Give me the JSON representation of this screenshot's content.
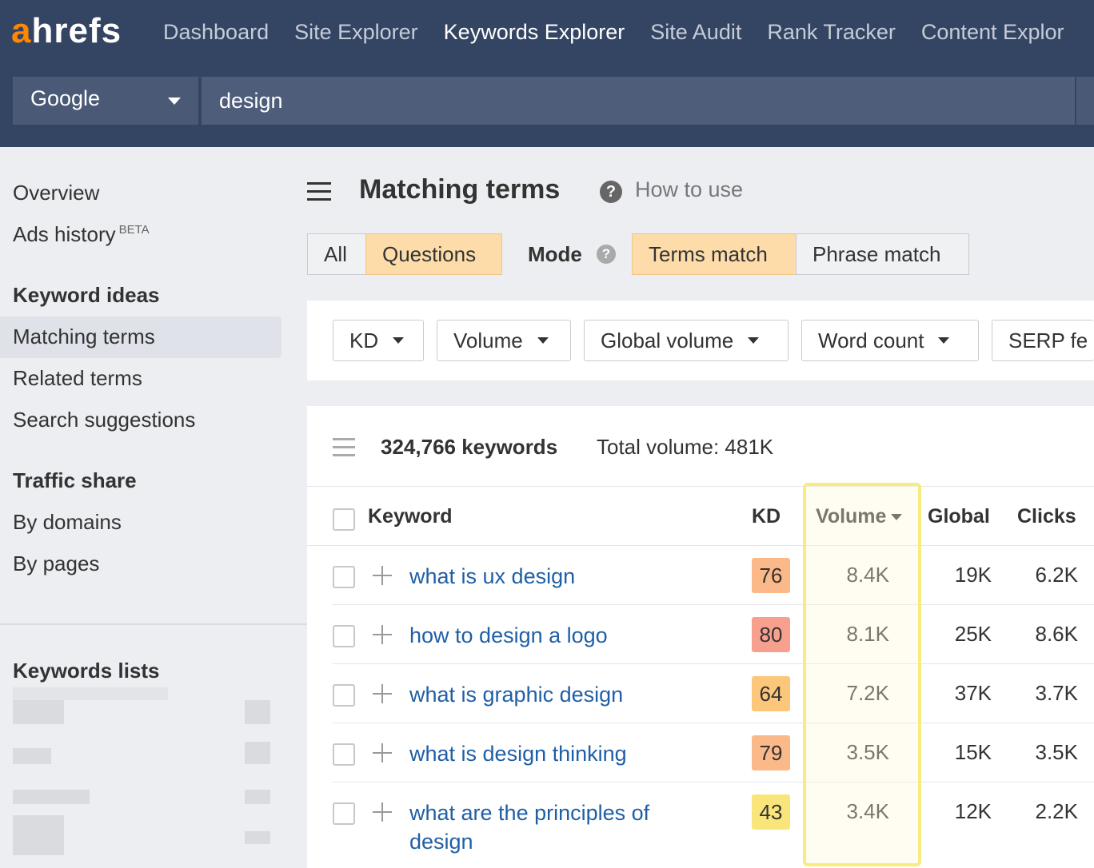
{
  "brand": {
    "logo_a": "a",
    "logo_rest": "hrefs",
    "accent": "#ff8800"
  },
  "nav": {
    "items": [
      "Dashboard",
      "Site Explorer",
      "Keywords Explorer",
      "Site Audit",
      "Rank Tracker",
      "Content Explor"
    ],
    "active": "Keywords Explorer"
  },
  "search": {
    "engine": "Google",
    "query": "design"
  },
  "sidebar": {
    "overview": "Overview",
    "ads_history": "Ads history",
    "ads_badge": "BETA",
    "keyword_ideas": "Keyword ideas",
    "matching_terms": "Matching terms",
    "related_terms": "Related terms",
    "search_suggestions": "Search suggestions",
    "traffic_share": "Traffic share",
    "by_domains": "By domains",
    "by_pages": "By pages",
    "keywords_lists": "Keywords lists"
  },
  "main": {
    "title": "Matching terms",
    "how_to_use": "How to use",
    "help_glyph": "?",
    "tabs": {
      "all": "All",
      "questions": "Questions"
    },
    "mode_label": "Mode",
    "mode": {
      "terms": "Terms match",
      "phrase": "Phrase match"
    },
    "filters": [
      "KD",
      "Volume",
      "Global volume",
      "Word count",
      "SERP fe"
    ],
    "keyword_count": "324,766 keywords",
    "total_volume": "Total volume: 481K"
  },
  "table": {
    "headers": {
      "keyword": "Keyword",
      "kd": "KD",
      "volume": "Volume",
      "global": "Global",
      "clicks": "Clicks"
    },
    "rows": [
      {
        "keyword": "what is ux design",
        "kd": "76",
        "kd_color": "#fbb98a",
        "volume": "8.4K",
        "global": "19K",
        "clicks": "6.2K"
      },
      {
        "keyword": "how to design a logo",
        "kd": "80",
        "kd_color": "#f7a08e",
        "volume": "8.1K",
        "global": "25K",
        "clicks": "8.6K"
      },
      {
        "keyword": "what is graphic design",
        "kd": "64",
        "kd_color": "#fcc77a",
        "volume": "7.2K",
        "global": "37K",
        "clicks": "3.7K"
      },
      {
        "keyword": "what is design thinking",
        "kd": "79",
        "kd_color": "#fbb98a",
        "volume": "3.5K",
        "global": "15K",
        "clicks": "3.5K"
      },
      {
        "keyword": "what are the principles of design",
        "kd": "43",
        "kd_color": "#fae57a",
        "volume": "3.4K",
        "global": "12K",
        "clicks": "2.2K"
      }
    ]
  }
}
